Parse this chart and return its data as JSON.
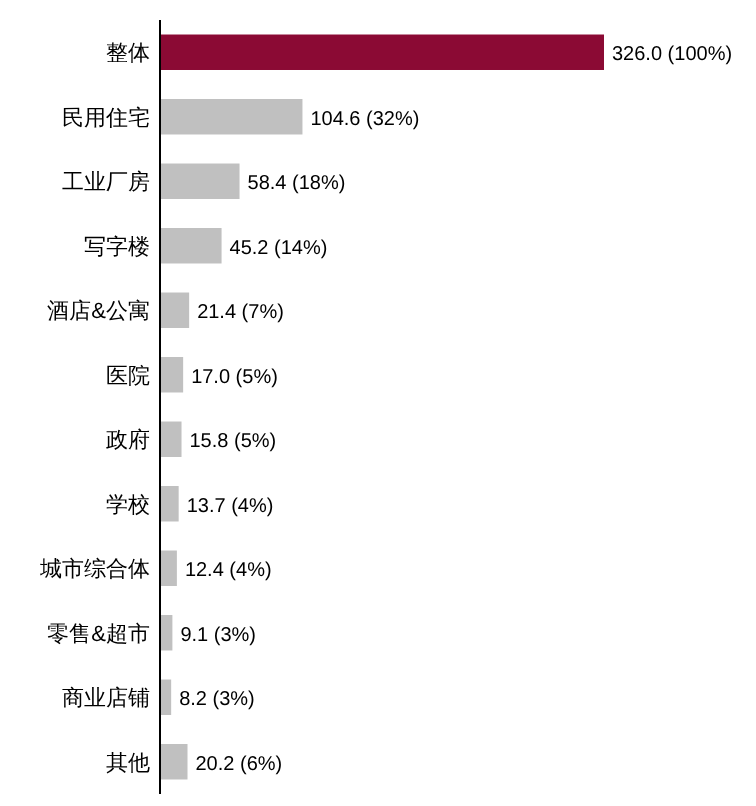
{
  "chart_data": {
    "type": "bar",
    "orientation": "horizontal",
    "categories": [
      "整体",
      "民用住宅",
      "工业厂房",
      "写字楼",
      "酒店&公寓",
      "医院",
      "政府",
      "学校",
      "城市综合体",
      "零售&超市",
      "商业店铺",
      "其他"
    ],
    "values": [
      326.0,
      104.6,
      58.4,
      45.2,
      21.4,
      17.0,
      15.8,
      13.7,
      12.4,
      9.1,
      8.2,
      20.2
    ],
    "colors": [
      "#8b0a34",
      "#c0c0c0",
      "#c0c0c0",
      "#c0c0c0",
      "#c0c0c0",
      "#c0c0c0",
      "#c0c0c0",
      "#c0c0c0",
      "#c0c0c0",
      "#c0c0c0",
      "#c0c0c0",
      "#c0c0c0"
    ],
    "value_labels": [
      "326.0 (100%)",
      "104.6 (32%)",
      "58.4 (18%)",
      "45.2 (14%)",
      "21.4 (7%)",
      "17.0 (5%)",
      "15.8 (5%)",
      "13.7 (4%)",
      "12.4 (4%)",
      "9.1 (3%)",
      "8.2 (3%)",
      "20.2 (6%)"
    ]
  }
}
